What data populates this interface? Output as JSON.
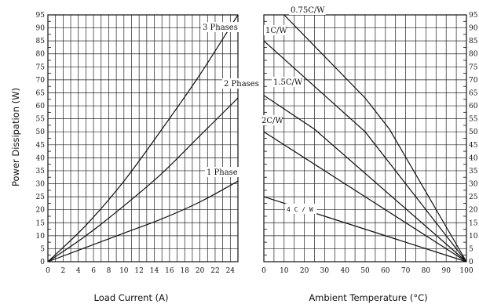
{
  "chart_data": [
    {
      "type": "line",
      "xlabel": "Load Current (A)",
      "ylabel": "Power Dissipation (W)",
      "xlim": [
        0,
        25
      ],
      "ylim": [
        0,
        95
      ],
      "x_ticks": [
        0,
        2,
        4,
        6,
        8,
        10,
        12,
        14,
        16,
        18,
        20,
        22,
        24
      ],
      "y_ticks": [
        0,
        5,
        10,
        15,
        20,
        25,
        30,
        35,
        40,
        45,
        50,
        55,
        60,
        65,
        70,
        75,
        80,
        85,
        90,
        95
      ],
      "grid": true,
      "series": [
        {
          "name": "3 Phases",
          "x": [
            0,
            5,
            10,
            15,
            20,
            25
          ],
          "y": [
            0,
            14,
            31,
            51,
            72,
            95
          ]
        },
        {
          "name": "2 Phases",
          "x": [
            0,
            5,
            10,
            15,
            20,
            25
          ],
          "y": [
            0,
            10,
            21.5,
            34,
            48.5,
            63
          ]
        },
        {
          "name": "1 Phase",
          "x": [
            0,
            5,
            10,
            15,
            20,
            25
          ],
          "y": [
            0,
            5.5,
            11,
            16.5,
            23,
            31
          ]
        }
      ]
    },
    {
      "type": "line",
      "xlabel": "Ambient Temperature (°C)",
      "ylabel": "",
      "xlim": [
        0,
        100
      ],
      "ylim": [
        0,
        95
      ],
      "x_ticks": [
        0,
        10,
        20,
        30,
        40,
        50,
        60,
        70,
        80,
        90,
        100
      ],
      "y_ticks": [
        0,
        5,
        10,
        15,
        20,
        25,
        30,
        35,
        40,
        45,
        50,
        55,
        60,
        65,
        70,
        75,
        80,
        85,
        90,
        95
      ],
      "grid": true,
      "series": [
        {
          "name": "0.75C/W",
          "x": [
            10,
            50,
            62,
            100
          ],
          "y": [
            95,
            63,
            51,
            0
          ]
        },
        {
          "name": "1C/W",
          "x": [
            0,
            50,
            100
          ],
          "y": [
            85,
            50,
            0
          ]
        },
        {
          "name": "1.5C/W",
          "x": [
            0,
            25,
            100
          ],
          "y": [
            64,
            51,
            0
          ]
        },
        {
          "name": "2C/W",
          "x": [
            0,
            100
          ],
          "y": [
            50,
            0
          ]
        },
        {
          "name": "4 C / W",
          "x": [
            0,
            100
          ],
          "y": [
            25,
            0
          ]
        }
      ]
    }
  ]
}
